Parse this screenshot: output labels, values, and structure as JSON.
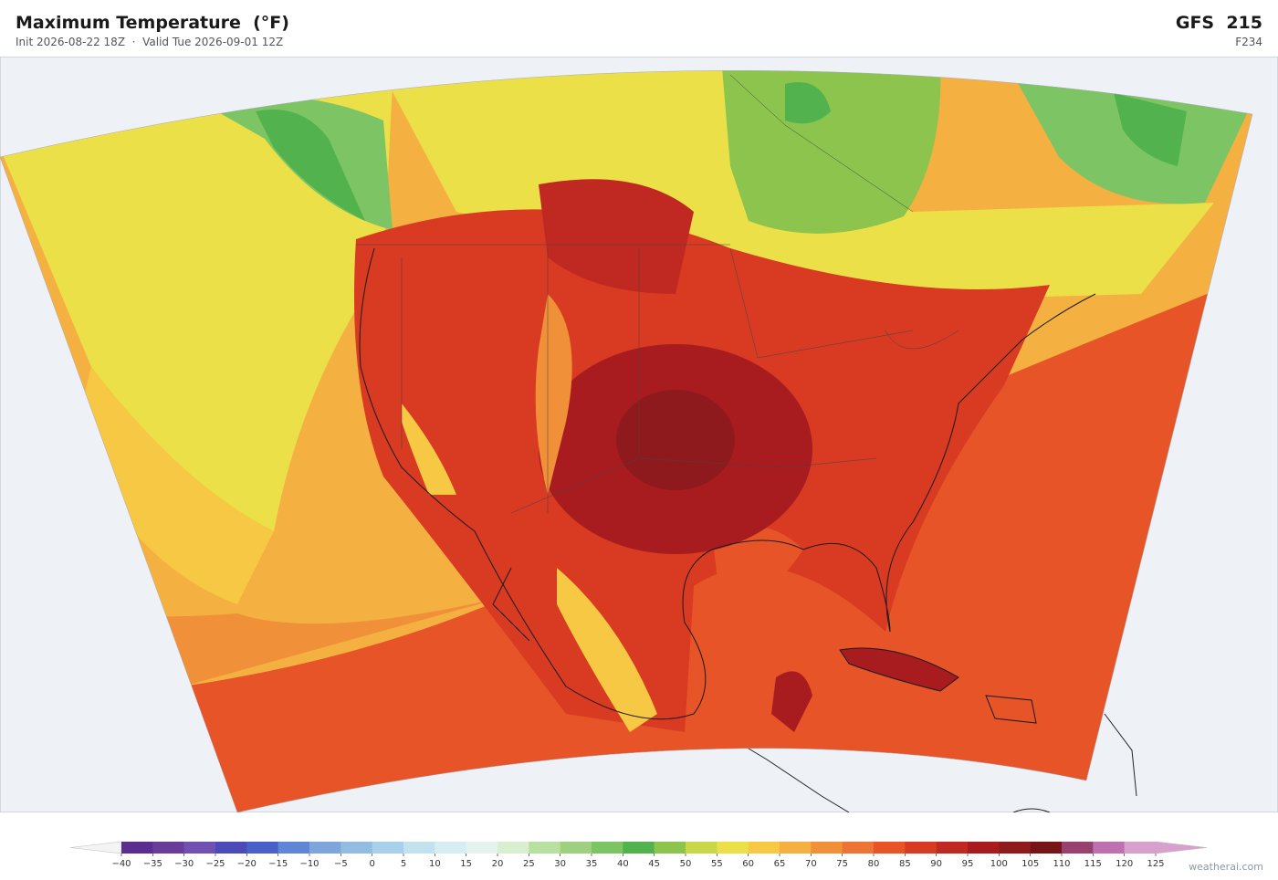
{
  "header": {
    "title": "Maximum Temperature  (°F)",
    "subtitle": "Init 2026-08-22 18Z  ·  Valid Tue 2026-09-01 12Z",
    "model": "GFS  215",
    "forecast_hour": "F234"
  },
  "colorbar": {
    "ticks": [
      {
        "value": -40,
        "label": "−40"
      },
      {
        "value": -35,
        "label": "−35"
      },
      {
        "value": -30,
        "label": "−30"
      },
      {
        "value": -25,
        "label": "−25"
      },
      {
        "value": -20,
        "label": "−20"
      },
      {
        "value": -15,
        "label": "−15"
      },
      {
        "value": -10,
        "label": "−10"
      },
      {
        "value": -5,
        "label": "−5"
      },
      0,
      5,
      10,
      15,
      20,
      25,
      30,
      35,
      40,
      45,
      50,
      55,
      60,
      65,
      70,
      75,
      80,
      85,
      90,
      95,
      100,
      105,
      110,
      115,
      120,
      125
    ],
    "colors": [
      "#5b2d8e",
      "#6a3d9a",
      "#7050b0",
      "#4a4ab8",
      "#4a5fc8",
      "#5f86d6",
      "#7fa6dc",
      "#93bce2",
      "#a9d0ea",
      "#c2e2f0",
      "#d6eef2",
      "#e4f3ee",
      "#d8efd0",
      "#b8e0a0",
      "#9ed080",
      "#7dc464",
      "#52b24e",
      "#8cc44e",
      "#c8d84a",
      "#ece048",
      "#f6c844",
      "#f4b040",
      "#f09038",
      "#ec7434",
      "#e65428",
      "#d83a22",
      "#c02822",
      "#a81c20",
      "#8e1a1e",
      "#761418",
      "#984070",
      "#c070b0",
      "#d8a0cc"
    ],
    "under_color": "#f4f4f4",
    "over_color": "#d8a0cc"
  },
  "footer": {
    "credit": "weatherai.com"
  }
}
